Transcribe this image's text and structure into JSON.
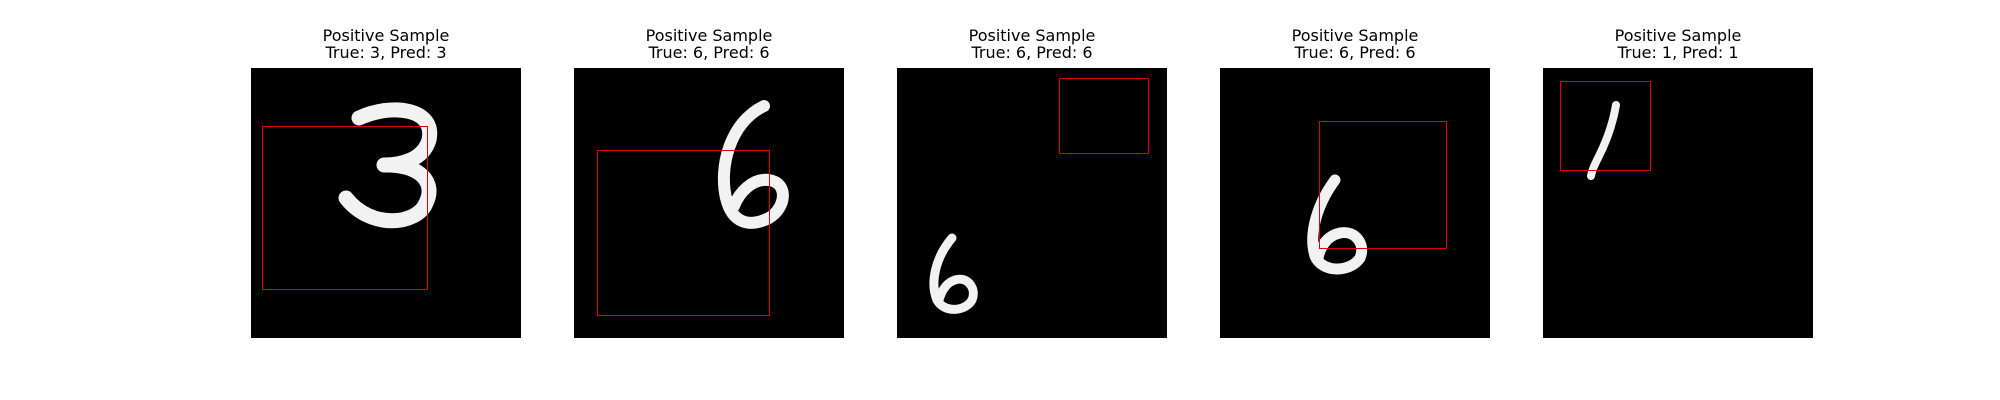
{
  "colors": {
    "background": "#ffffff",
    "image_background": "#000000",
    "digit_stroke": "#f2f2f2",
    "box_color": "#e00000"
  },
  "panels": [
    {
      "title": "Positive Sample",
      "subtitle": "True: 3, Pred: 3",
      "digit": "3"
    },
    {
      "title": "Positive Sample",
      "subtitle": "True: 6, Pred: 6",
      "digit": "6"
    },
    {
      "title": "Positive Sample",
      "subtitle": "True: 6, Pred: 6",
      "digit": "6"
    },
    {
      "title": "Positive Sample",
      "subtitle": "True: 6, Pred: 6",
      "digit": "6"
    },
    {
      "title": "Positive Sample",
      "subtitle": "True: 1, Pred: 1",
      "digit": "1"
    }
  ]
}
